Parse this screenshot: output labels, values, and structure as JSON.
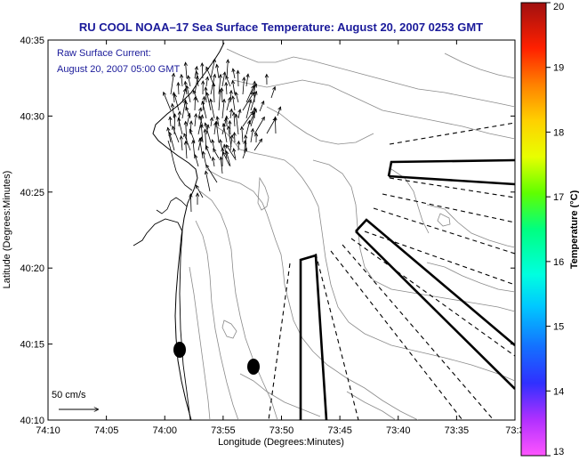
{
  "chart_data": {
    "type": "map",
    "title": "RU COOL  NOAA–17  Sea Surface Temperature:  August 20, 2007 0253 GMT",
    "annotation": [
      "Raw Surface Current:",
      "August 20, 2007 05:00 GMT"
    ],
    "xlabel": "Longitude (Degrees:Minutes)",
    "ylabel": "Latitude (Degrees:Minutes)",
    "xticks": [
      "74:10",
      "74:05",
      "74:00",
      "73:55",
      "73:50",
      "73:45",
      "73:40",
      "73:35",
      "73:3"
    ],
    "yticks": [
      "40:10",
      "40:15",
      "40:20",
      "40:25",
      "40:30",
      "40:35"
    ],
    "xlim": [
      -74.1667,
      -73.5
    ],
    "ylim": [
      40.1667,
      40.5833
    ],
    "scale_label": "50 cm/s",
    "colorbar": {
      "label": "Temperature (°C)",
      "ticks": [
        "13",
        "14",
        "15",
        "16",
        "17",
        "18",
        "19",
        "20"
      ],
      "range": [
        13,
        20
      ]
    }
  }
}
